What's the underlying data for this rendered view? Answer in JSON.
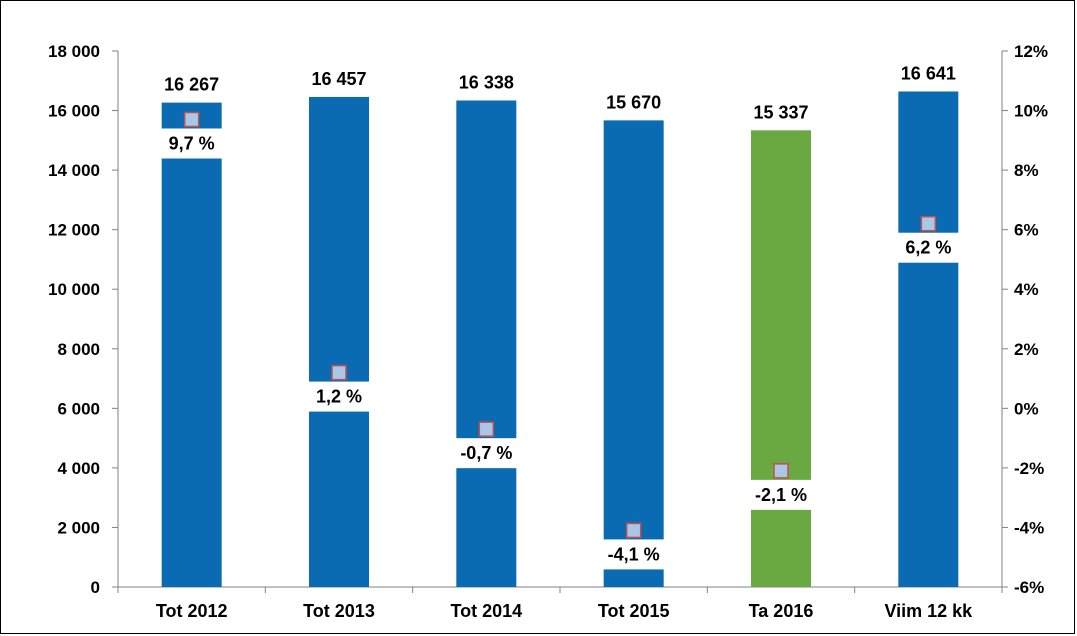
{
  "chart_data": {
    "type": "bar",
    "categories": [
      "Tot 2012",
      "Tot 2013",
      "Tot 2014",
      "Tot 2015",
      "Ta 2016",
      "Viim 12 kk"
    ],
    "series": [
      {
        "axis": "left",
        "values": [
          16267,
          16457,
          16338,
          15670,
          15337,
          16641
        ],
        "value_labels": [
          "16 267",
          "16 457",
          "16 338",
          "15 670",
          "15 337",
          "16 641"
        ],
        "colors": [
          "#0a6ab2",
          "#0a6ab2",
          "#0a6ab2",
          "#0a6ab2",
          "#6aa842",
          "#0a6ab2"
        ]
      },
      {
        "axis": "right",
        "marker": "square",
        "values": [
          9.7,
          1.2,
          -0.7,
          -4.1,
          -2.1,
          6.2
        ],
        "value_labels": [
          "9,7 %",
          "1,2 %",
          "-0,7 %",
          "-4,1 %",
          "-2,1 %",
          "6,2 %"
        ],
        "marker_fill": "#a9c8e8",
        "marker_stroke": "#c0504d"
      }
    ],
    "y_left": {
      "ylim": [
        0,
        18000
      ],
      "ticks": [
        0,
        2000,
        4000,
        6000,
        8000,
        10000,
        12000,
        14000,
        16000,
        18000
      ],
      "tick_labels": [
        "0",
        "2 000",
        "4 000",
        "6 000",
        "8 000",
        "10 000",
        "12 000",
        "14 000",
        "16 000",
        "18 000"
      ]
    },
    "y_right": {
      "ylim": [
        -6,
        12
      ],
      "ticks": [
        -6,
        -4,
        -2,
        0,
        2,
        4,
        6,
        8,
        10,
        12
      ],
      "tick_labels": [
        "-6%",
        "-4%",
        "-2%",
        "0%",
        "2%",
        "4%",
        "6%",
        "8%",
        "10%",
        "12%"
      ]
    },
    "grid": false,
    "legend": "none",
    "title": "",
    "xlabel": "",
    "ylabel": ""
  }
}
